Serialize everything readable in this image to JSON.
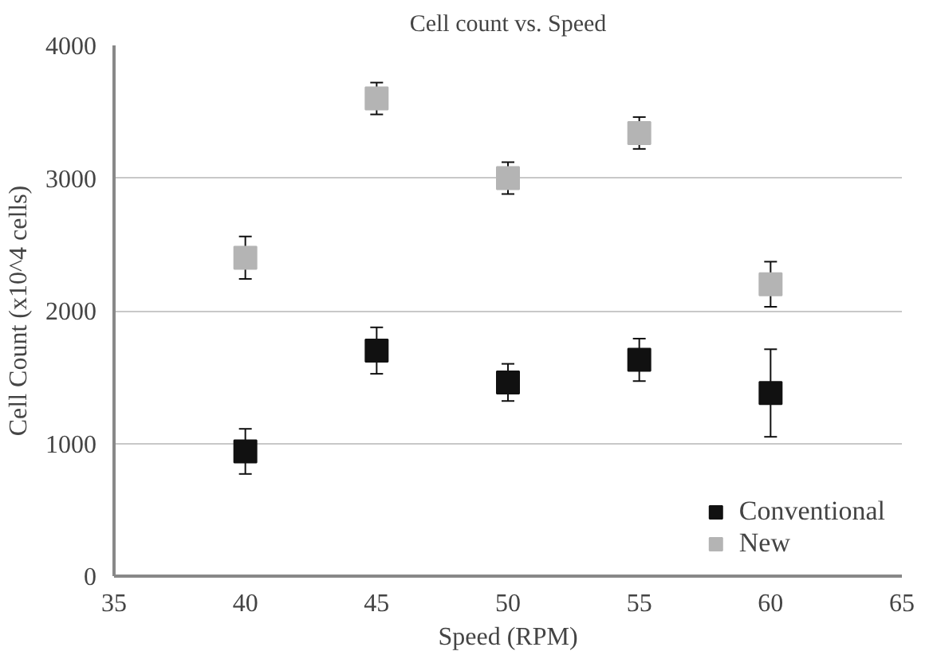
{
  "chart_data": {
    "type": "scatter",
    "title": "Cell count vs. Speed",
    "xlabel": "Speed (RPM)",
    "ylabel": "Cell Count (x10^4 cells)",
    "x": [
      40,
      45,
      50,
      55,
      60
    ],
    "series": [
      {
        "name": "Conventional",
        "color": "#111111",
        "values": [
          940,
          1700,
          1460,
          1630,
          1380
        ],
        "errors": [
          170,
          175,
          140,
          160,
          330
        ]
      },
      {
        "name": "New",
        "color": "#b4b4b4",
        "values": [
          2400,
          3600,
          3000,
          3340,
          2200
        ],
        "errors": [
          160,
          120,
          120,
          120,
          170
        ]
      }
    ],
    "xlim": [
      35,
      65
    ],
    "xticks": [
      35,
      40,
      45,
      50,
      55,
      60,
      65
    ],
    "ylim": [
      0,
      4000
    ],
    "yticks": [
      0,
      1000,
      2000,
      3000,
      4000
    ],
    "grid": "y",
    "legend": "bottom right",
    "marker": "square"
  }
}
